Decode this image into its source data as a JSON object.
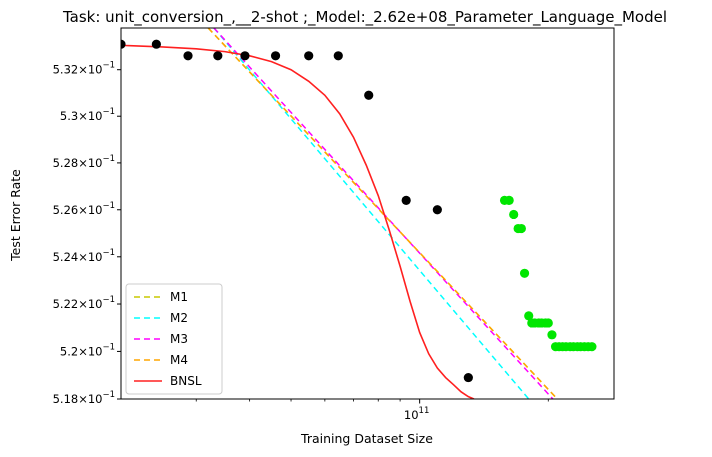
{
  "chart_data": {
    "type": "scatter",
    "title": "Task: unit_conversion_,__2-shot ;_Model:_2.62e+08_Parameter_Language_Model",
    "xlabel": "Training Dataset Size",
    "ylabel": "Test Error Rate",
    "x_scale": "log",
    "y_scale": "log",
    "xlim": [
      20000000000.0,
      285000000000.0
    ],
    "ylim": [
      0.518,
      0.5338
    ],
    "x_major_ticks": [
      {
        "value": 100000000000.0,
        "base": "10",
        "exp": "11"
      }
    ],
    "x_minor_ticks": [
      30000000000.0,
      40000000000.0,
      50000000000.0,
      60000000000.0,
      70000000000.0,
      80000000000.0,
      90000000000.0,
      200000000000.0
    ],
    "y_ticks": [
      {
        "value": 0.518,
        "mant": "5.18",
        "exp": "−1"
      },
      {
        "value": 0.52,
        "mant": "5.2",
        "exp": "−1"
      },
      {
        "value": 0.522,
        "mant": "5.22",
        "exp": "−1"
      },
      {
        "value": 0.524,
        "mant": "5.24",
        "exp": "−1"
      },
      {
        "value": 0.526,
        "mant": "5.26",
        "exp": "−1"
      },
      {
        "value": 0.528,
        "mant": "5.28",
        "exp": "−1"
      },
      {
        "value": 0.53,
        "mant": "5.3",
        "exp": "−1"
      },
      {
        "value": 0.532,
        "mant": "5.32",
        "exp": "−1"
      }
    ],
    "train_points": {
      "color": "#000000",
      "x": [
        20000000000.0,
        24200000000.0,
        28700000000.0,
        33700000000.0,
        39000000000.0,
        46000000000.0,
        55000000000.0,
        64500000000.0,
        76000000000.0,
        93000000000.0,
        110000000000.0,
        130000000000.0
      ],
      "y": [
        0.5331,
        0.5331,
        0.5326,
        0.5326,
        0.5326,
        0.5326,
        0.5326,
        0.5326,
        0.5309,
        0.5264,
        0.526,
        0.5189
      ]
    },
    "test_points": {
      "color": "#00e600",
      "x": [
        158000000000.0,
        162000000000.0,
        166000000000.0,
        170000000000.0,
        173000000000.0,
        176000000000.0,
        180000000000.0,
        183000000000.0,
        186000000000.0,
        190000000000.0,
        193000000000.0,
        197000000000.0,
        200000000000.0,
        204000000000.0,
        208000000000.0,
        212000000000.0,
        216000000000.0,
        220000000000.0,
        225000000000.0,
        229000000000.0,
        234000000000.0,
        238000000000.0,
        243000000000.0,
        248000000000.0,
        253000000000.0
      ],
      "y": [
        0.5264,
        0.5264,
        0.5258,
        0.5252,
        0.5252,
        0.5233,
        0.5215,
        0.5212,
        0.5212,
        0.5212,
        0.5212,
        0.5212,
        0.5212,
        0.5207,
        0.5202,
        0.5202,
        0.5202,
        0.5202,
        0.5202,
        0.5202,
        0.5202,
        0.5202,
        0.5202,
        0.5202,
        0.5202
      ]
    },
    "series": [
      {
        "name": "M1",
        "color": "#c8c800",
        "dash": "6,4",
        "x": [
          32000000000.0,
          210000000000.0
        ],
        "y": [
          0.5338,
          0.518
        ]
      },
      {
        "name": "M2",
        "color": "#00ffff",
        "dash": "6,4",
        "x": [
          33000000000.0,
          180000000000.0
        ],
        "y": [
          0.5338,
          0.518
        ]
      },
      {
        "name": "M3",
        "color": "#ff00ff",
        "dash": "6,4",
        "x": [
          33000000000.0,
          205000000000.0
        ],
        "y": [
          0.5338,
          0.518
        ]
      },
      {
        "name": "M4",
        "color": "#ffa500",
        "dash": "6,4",
        "x": [
          32000000000.0,
          210000000000.0
        ],
        "y": [
          0.5338,
          0.518
        ]
      },
      {
        "name": "BNSL",
        "color": "#ff2020",
        "dash": "",
        "x": [
          20000000000.0,
          25000000000.0,
          30000000000.0,
          35000000000.0,
          40000000000.0,
          45000000000.0,
          50000000000.0,
          55000000000.0,
          60000000000.0,
          65000000000.0,
          70000000000.0,
          75000000000.0,
          80000000000.0,
          85000000000.0,
          90000000000.0,
          95000000000.0,
          100000000000.0,
          105000000000.0,
          110000000000.0,
          115000000000.0,
          120000000000.0,
          125000000000.0,
          130000000000.0,
          134000000000.0
        ],
        "y": [
          0.53305,
          0.53298,
          0.5329,
          0.53278,
          0.5326,
          0.53235,
          0.532,
          0.5315,
          0.5309,
          0.5301,
          0.5291,
          0.5279,
          0.5266,
          0.5251,
          0.5236,
          0.5221,
          0.5208,
          0.5199,
          0.5193,
          0.5189,
          0.5186,
          0.5183,
          0.5181,
          0.518
        ]
      }
    ],
    "legend": {
      "placement": "lower-left",
      "entries": [
        "M1",
        "M2",
        "M3",
        "M4",
        "BNSL"
      ]
    }
  }
}
